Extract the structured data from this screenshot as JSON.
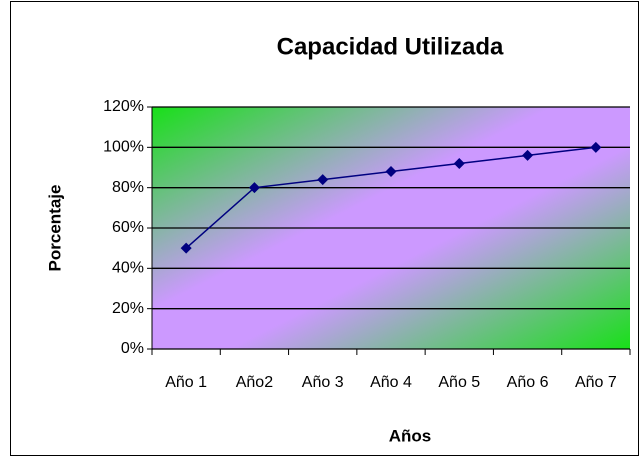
{
  "chart_data": {
    "type": "line",
    "title": "Capacidad Utilizada",
    "x_label": "Años",
    "y_label": "Porcentaje",
    "categories": [
      "Año 1",
      "Año2",
      "Año 3",
      "Año 4",
      "Año 5",
      "Año 6",
      "Año 7"
    ],
    "series": [
      {
        "name": "Capacidad Utilizada",
        "color": "#000080",
        "values": [
          50,
          80,
          84,
          88,
          92,
          96,
          100
        ]
      }
    ],
    "ylim": [
      0,
      120
    ],
    "yticks": [
      {
        "value": 0,
        "label": "0%"
      },
      {
        "value": 20,
        "label": "20%"
      },
      {
        "value": 40,
        "label": "40%"
      },
      {
        "value": 60,
        "label": "60%"
      },
      {
        "value": 80,
        "label": "80%"
      },
      {
        "value": 100,
        "label": "100%"
      },
      {
        "value": 120,
        "label": "120%"
      }
    ],
    "grid": true
  }
}
